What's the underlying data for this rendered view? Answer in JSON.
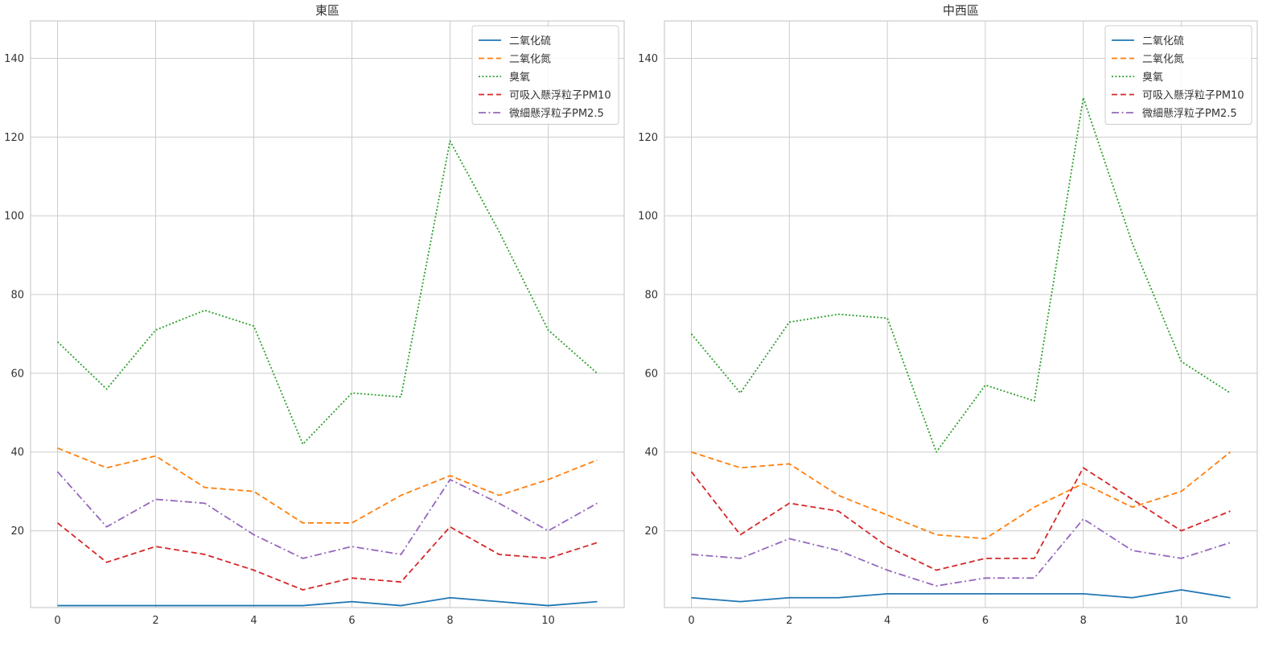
{
  "chart_data": [
    {
      "type": "line",
      "title": "東區",
      "xlabel": "",
      "ylabel": "",
      "x": [
        0,
        1,
        2,
        3,
        4,
        5,
        6,
        7,
        8,
        9,
        10,
        11
      ],
      "xlim": [
        -0.55,
        11.55
      ],
      "ylim": [
        0.5,
        149.5
      ],
      "xticks": [
        0,
        2,
        4,
        6,
        8,
        10
      ],
      "yticks": [
        20,
        40,
        60,
        80,
        100,
        120,
        140
      ],
      "grid": true,
      "legend_position": "top-right",
      "series": [
        {
          "name": "二氧化硫",
          "color": "#1f77b4",
          "dash": "solid",
          "values": [
            1,
            1,
            1,
            1,
            1,
            1,
            2,
            1,
            3,
            2,
            1,
            2
          ]
        },
        {
          "name": "二氧化氮",
          "color": "#ff7f0e",
          "dash": "dashed",
          "values": [
            41,
            36,
            39,
            31,
            30,
            22,
            22,
            29,
            34,
            29,
            33,
            38
          ]
        },
        {
          "name": "臭氧",
          "color": "#2ca02c",
          "dash": "dotted",
          "values": [
            68,
            56,
            71,
            76,
            72,
            42,
            55,
            54,
            119,
            96,
            71,
            60
          ]
        },
        {
          "name": "可吸入懸浮粒子PM10",
          "color": "#d62728",
          "dash": "dashed",
          "values": [
            22,
            12,
            16,
            14,
            10,
            5,
            8,
            7,
            21,
            14,
            13,
            17
          ]
        },
        {
          "name": "微細懸浮粒子PM2.5",
          "color": "#9467bd",
          "dash": "dashdot",
          "values": [
            35,
            21,
            28,
            27,
            19,
            13,
            16,
            14,
            33,
            27,
            20,
            27
          ]
        }
      ]
    },
    {
      "type": "line",
      "title": "中西區",
      "xlabel": "",
      "ylabel": "",
      "x": [
        0,
        1,
        2,
        3,
        4,
        5,
        6,
        7,
        8,
        9,
        10,
        11
      ],
      "xlim": [
        -0.55,
        11.55
      ],
      "ylim": [
        0.5,
        149.5
      ],
      "xticks": [
        0,
        2,
        4,
        6,
        8,
        10
      ],
      "yticks": [
        20,
        40,
        60,
        80,
        100,
        120,
        140
      ],
      "grid": true,
      "legend_position": "top-right",
      "series": [
        {
          "name": "二氧化硫",
          "color": "#1f77b4",
          "dash": "solid",
          "values": [
            3,
            2,
            3,
            3,
            4,
            4,
            4,
            4,
            4,
            3,
            5,
            3
          ]
        },
        {
          "name": "二氧化氮",
          "color": "#ff7f0e",
          "dash": "dashed",
          "values": [
            40,
            36,
            37,
            29,
            24,
            19,
            18,
            26,
            32,
            26,
            30,
            40
          ]
        },
        {
          "name": "臭氧",
          "color": "#2ca02c",
          "dash": "dotted",
          "values": [
            70,
            55,
            73,
            75,
            74,
            40,
            57,
            53,
            130,
            93,
            63,
            55
          ]
        },
        {
          "name": "可吸入懸浮粒子PM10",
          "color": "#d62728",
          "dash": "dashed",
          "values": [
            35,
            19,
            27,
            25,
            16,
            10,
            13,
            13,
            36,
            28,
            20,
            25
          ]
        },
        {
          "name": "微細懸浮粒子PM2.5",
          "color": "#9467bd",
          "dash": "dashdot",
          "values": [
            14,
            13,
            18,
            15,
            10,
            6,
            8,
            8,
            23,
            15,
            13,
            17
          ]
        }
      ]
    }
  ]
}
